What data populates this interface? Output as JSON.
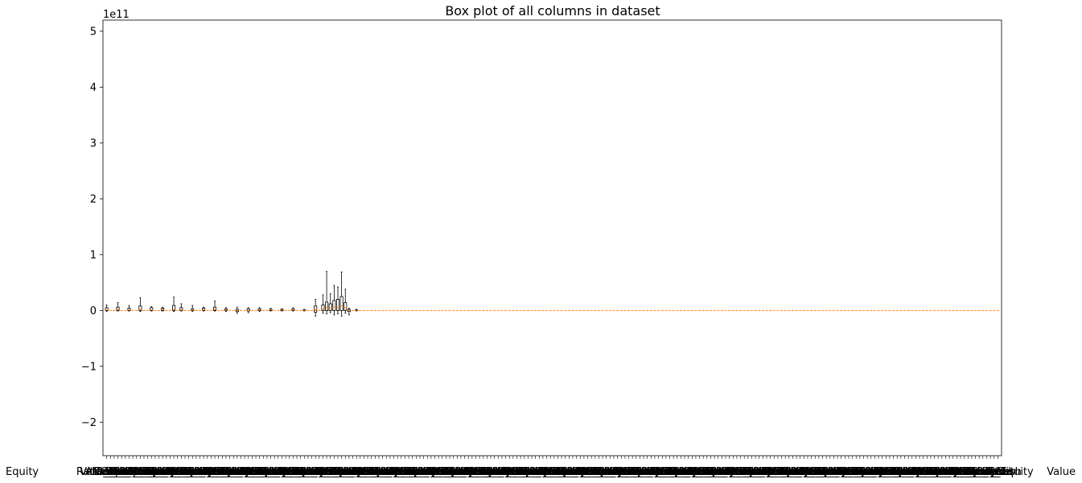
{
  "chart_data": {
    "type": "box",
    "title": "Box plot of all columns in dataset",
    "xlabel": "",
    "ylabel": "",
    "y_offset_label": "1e11",
    "ylim": [
      -2.6,
      5.2
    ],
    "y_ticks": [
      -2,
      -1,
      0,
      1,
      2,
      3,
      4,
      5
    ],
    "y_tick_labels": [
      "−2",
      "−1",
      "0",
      "1",
      "2",
      "3",
      "4",
      "5"
    ],
    "grid": false,
    "legend": "none",
    "median_color": "#ff7f0e",
    "box_color": "#000000",
    "n_columns": 240,
    "x_tick_labels_visible": [
      "Equity",
      "Value"
    ],
    "boxes": [
      {
        "column": 1,
        "q1": 0.0,
        "median": 0.01,
        "q3": 0.05,
        "whisker_low": -0.02,
        "whisker_high": 0.1
      },
      {
        "column": 4,
        "q1": 0.0,
        "median": 0.02,
        "q3": 0.06,
        "whisker_low": -0.01,
        "whisker_high": 0.14
      },
      {
        "column": 7,
        "q1": 0.0,
        "median": 0.01,
        "q3": 0.04,
        "whisker_low": -0.01,
        "whisker_high": 0.09
      },
      {
        "column": 10,
        "q1": 0.0,
        "median": 0.02,
        "q3": 0.08,
        "whisker_low": -0.02,
        "whisker_high": 0.23
      },
      {
        "column": 13,
        "q1": 0.0,
        "median": 0.01,
        "q3": 0.05,
        "whisker_low": -0.01,
        "whisker_high": 0.07
      },
      {
        "column": 16,
        "q1": 0.0,
        "median": 0.02,
        "q3": 0.04,
        "whisker_low": -0.01,
        "whisker_high": 0.06
      },
      {
        "column": 19,
        "q1": 0.0,
        "median": 0.02,
        "q3": 0.09,
        "whisker_low": -0.02,
        "whisker_high": 0.24
      },
      {
        "column": 21,
        "q1": 0.0,
        "median": 0.01,
        "q3": 0.05,
        "whisker_low": -0.01,
        "whisker_high": 0.12
      },
      {
        "column": 24,
        "q1": 0.0,
        "median": 0.01,
        "q3": 0.03,
        "whisker_low": -0.02,
        "whisker_high": 0.09
      },
      {
        "column": 27,
        "q1": 0.0,
        "median": 0.01,
        "q3": 0.04,
        "whisker_low": -0.01,
        "whisker_high": 0.06
      },
      {
        "column": 30,
        "q1": 0.0,
        "median": 0.02,
        "q3": 0.06,
        "whisker_low": -0.01,
        "whisker_high": 0.17
      },
      {
        "column": 33,
        "q1": 0.0,
        "median": 0.01,
        "q3": 0.03,
        "whisker_low": -0.02,
        "whisker_high": 0.05
      },
      {
        "column": 36,
        "q1": -0.02,
        "median": 0.0,
        "q3": 0.02,
        "whisker_low": -0.05,
        "whisker_high": 0.06
      },
      {
        "column": 39,
        "q1": -0.01,
        "median": 0.0,
        "q3": 0.03,
        "whisker_low": -0.04,
        "whisker_high": 0.05
      },
      {
        "column": 42,
        "q1": 0.0,
        "median": 0.01,
        "q3": 0.03,
        "whisker_low": -0.02,
        "whisker_high": 0.05
      },
      {
        "column": 45,
        "q1": 0.0,
        "median": 0.01,
        "q3": 0.02,
        "whisker_low": -0.01,
        "whisker_high": 0.04
      },
      {
        "column": 48,
        "q1": 0.0,
        "median": 0.01,
        "q3": 0.02,
        "whisker_low": -0.01,
        "whisker_high": 0.03
      },
      {
        "column": 51,
        "q1": 0.0,
        "median": 0.01,
        "q3": 0.03,
        "whisker_low": -0.01,
        "whisker_high": 0.05
      },
      {
        "column": 54,
        "q1": 0.0,
        "median": 0.0,
        "q3": 0.01,
        "whisker_low": -0.01,
        "whisker_high": 0.02
      },
      {
        "column": 57,
        "q1": -0.03,
        "median": 0.02,
        "q3": 0.08,
        "whisker_low": -0.1,
        "whisker_high": 0.2
      },
      {
        "column": 59,
        "q1": 0.0,
        "median": 0.03,
        "q3": 0.1,
        "whisker_low": -0.05,
        "whisker_high": 0.28
      },
      {
        "column": 60,
        "q1": 0.0,
        "median": 0.05,
        "q3": 0.15,
        "whisker_low": -0.06,
        "whisker_high": 0.7
      },
      {
        "column": 61,
        "q1": 0.0,
        "median": 0.04,
        "q3": 0.12,
        "whisker_low": -0.04,
        "whisker_high": 0.3
      },
      {
        "column": 62,
        "q1": 0.0,
        "median": 0.06,
        "q3": 0.18,
        "whisker_low": -0.08,
        "whisker_high": 0.45
      },
      {
        "column": 63,
        "q1": 0.0,
        "median": 0.05,
        "q3": 0.2,
        "whisker_low": -0.06,
        "whisker_high": 0.42
      },
      {
        "column": 64,
        "q1": 0.0,
        "median": 0.08,
        "q3": 0.25,
        "whisker_low": -0.1,
        "whisker_high": 0.69
      },
      {
        "column": 65,
        "q1": 0.0,
        "median": 0.05,
        "q3": 0.14,
        "whisker_low": -0.05,
        "whisker_high": 0.38
      },
      {
        "column": 66,
        "q1": -0.02,
        "median": 0.0,
        "q3": 0.02,
        "whisker_low": -0.08,
        "whisker_high": 0.04
      },
      {
        "column": 68,
        "q1": 0.0,
        "median": 0.0,
        "q3": 0.01,
        "whisker_low": -0.01,
        "whisker_high": 0.02
      }
    ]
  }
}
